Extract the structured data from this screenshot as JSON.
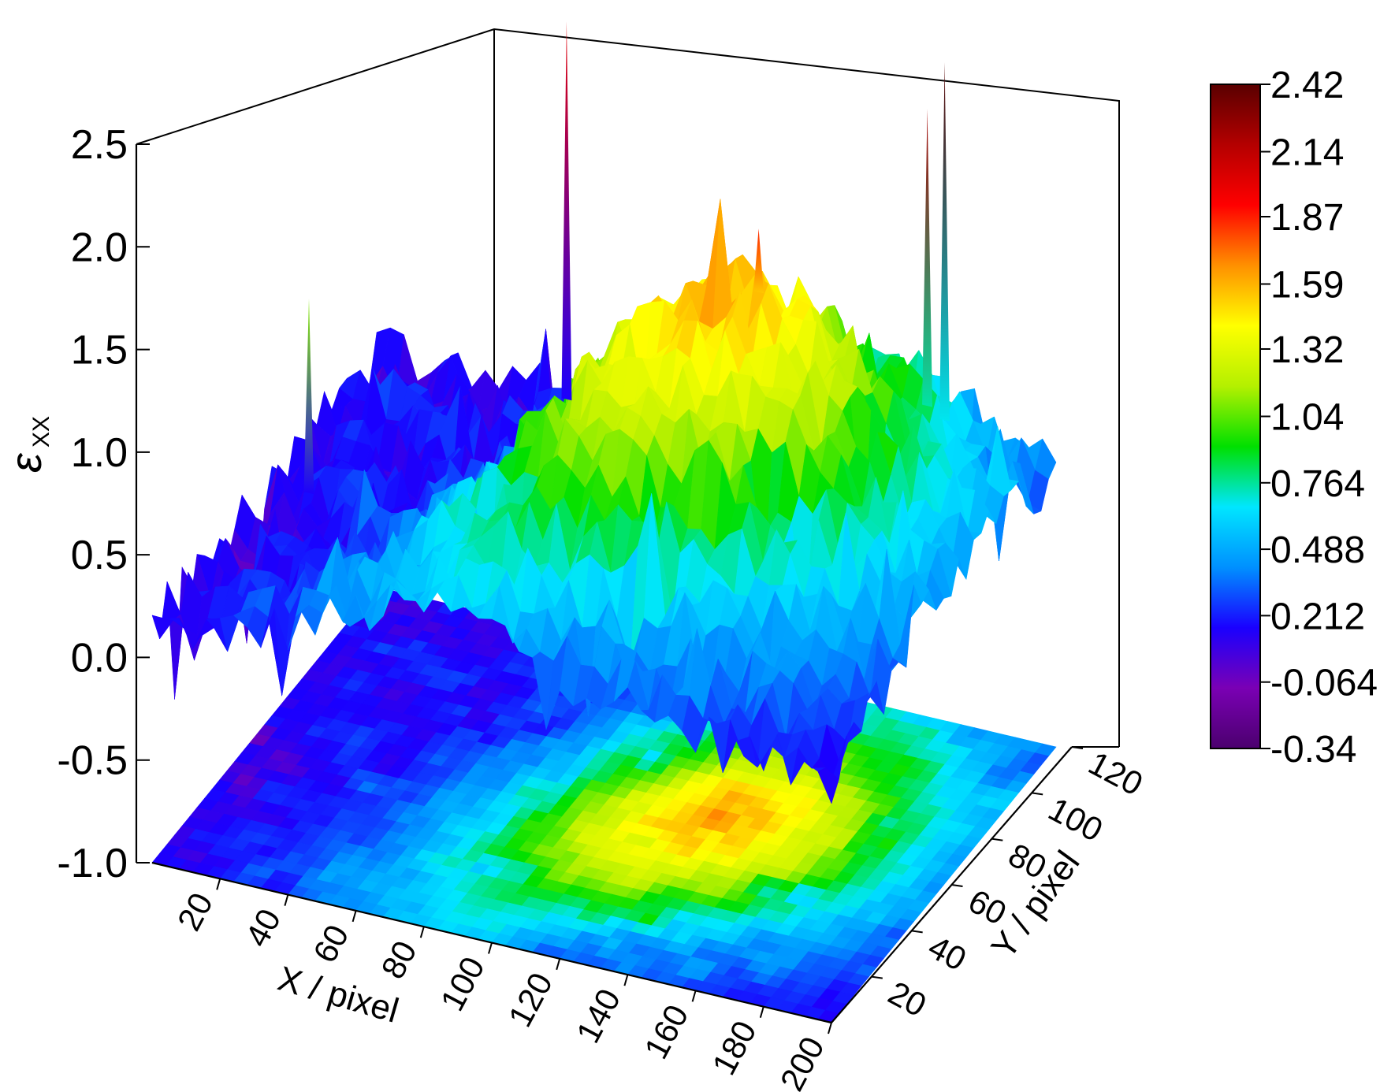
{
  "chart_data": {
    "type": "surface3d",
    "title": "",
    "xlabel": "X / pixel",
    "ylabel": "Y / pixel",
    "zlabel": "ε",
    "zlabel_subscript": "XX",
    "x_ticks": [
      "20",
      "40",
      "60",
      "80",
      "100",
      "120",
      "140",
      "160",
      "180",
      "200"
    ],
    "y_ticks": [
      "20",
      "40",
      "60",
      "80",
      "100",
      "120"
    ],
    "z_ticks": [
      "-1.0",
      "-0.5",
      "0.0",
      "0.5",
      "1.0",
      "1.5",
      "2.0",
      "2.5"
    ],
    "x_range": [
      0,
      200
    ],
    "y_range": [
      0,
      120
    ],
    "z_range": [
      -1.0,
      2.5
    ],
    "colorbar": {
      "min": -0.34,
      "max": 2.42,
      "tick_labels": [
        "2.42",
        "2.14",
        "1.87",
        "1.59",
        "1.32",
        "1.04",
        "0.764",
        "0.488",
        "0.212",
        "-0.064",
        "-0.34"
      ],
      "tick_values": [
        2.42,
        2.14,
        1.87,
        1.59,
        1.32,
        1.04,
        0.764,
        0.488,
        0.212,
        -0.064,
        -0.34
      ],
      "colors": [
        "#4b006e",
        "#7a00b4",
        "#1a00ff",
        "#0090ff",
        "#00e6ff",
        "#00e000",
        "#b4f000",
        "#ffff00",
        "#ff9000",
        "#ff0000",
        "#b40000",
        "#5a0000"
      ]
    },
    "surface": {
      "description_free": true,
      "peak_center": [
        150,
        60
      ],
      "peak_value": 1.7,
      "base_value": 0.15,
      "spikes": [
        {
          "x": 176,
          "y": 104,
          "z": 2.42
        },
        {
          "x": 172,
          "y": 102,
          "z": 2.2
        },
        {
          "x": 57,
          "y": 118,
          "z": 2.0
        },
        {
          "x": 12,
          "y": 62,
          "z": 1.1
        },
        {
          "x": 140,
          "y": 70,
          "z": 1.85
        }
      ]
    },
    "grid": false,
    "legend": "right"
  }
}
